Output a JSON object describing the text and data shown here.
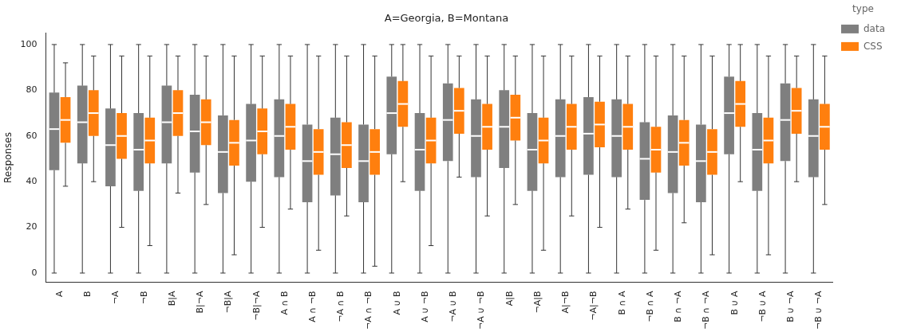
{
  "chart_data": {
    "type": "box",
    "title": "A=Georgia, B=Montana",
    "ylabel": "Responses",
    "legend_title": "type",
    "legend": "right",
    "grid": false,
    "categories": [
      "A",
      "B",
      "¬A",
      "¬B",
      "B|A",
      "B|¬A",
      "¬B|A",
      "¬B|¬A",
      "A ∩ B",
      "A ∩ ¬B",
      "¬A ∩ B",
      "¬A ∩ ¬B",
      "A ∪ B",
      "A ∪ ¬B",
      "¬A ∪ B",
      "¬A ∪ ¬B",
      "A|B",
      "¬A|B",
      "A|¬B",
      "¬A|¬B",
      "B ∩ A",
      "¬B ∩ A",
      "B ∩ ¬A",
      "¬B ∩ ¬A",
      "B ∪ A",
      "¬B ∪ A",
      "B ∪ ¬A",
      "¬B ∪ ¬A"
    ],
    "ylim": [
      -4,
      105
    ],
    "yticks": [
      0,
      20,
      40,
      60,
      80,
      100
    ],
    "series": [
      {
        "name": "data",
        "color": "#7f7f7f",
        "boxes": [
          {
            "low": 0,
            "q1": 45,
            "median": 63,
            "q3": 79,
            "high": 100
          },
          {
            "low": 0,
            "q1": 48,
            "median": 66,
            "q3": 82,
            "high": 100
          },
          {
            "low": 0,
            "q1": 38,
            "median": 56,
            "q3": 72,
            "high": 100
          },
          {
            "low": 0,
            "q1": 36,
            "median": 54,
            "q3": 70,
            "high": 100
          },
          {
            "low": 0,
            "q1": 48,
            "median": 66,
            "q3": 82,
            "high": 100
          },
          {
            "low": 0,
            "q1": 44,
            "median": 62,
            "q3": 78,
            "high": 100
          },
          {
            "low": 0,
            "q1": 35,
            "median": 53,
            "q3": 69,
            "high": 100
          },
          {
            "low": 0,
            "q1": 40,
            "median": 58,
            "q3": 74,
            "high": 100
          },
          {
            "low": 0,
            "q1": 42,
            "median": 60,
            "q3": 76,
            "high": 100
          },
          {
            "low": 0,
            "q1": 31,
            "median": 49,
            "q3": 65,
            "high": 100
          },
          {
            "low": 0,
            "q1": 34,
            "median": 52,
            "q3": 68,
            "high": 100
          },
          {
            "low": 0,
            "q1": 31,
            "median": 49,
            "q3": 65,
            "high": 100
          },
          {
            "low": 0,
            "q1": 52,
            "median": 70,
            "q3": 86,
            "high": 100
          },
          {
            "low": 0,
            "q1": 36,
            "median": 54,
            "q3": 70,
            "high": 100
          },
          {
            "low": 0,
            "q1": 49,
            "median": 67,
            "q3": 83,
            "high": 100
          },
          {
            "low": 0,
            "q1": 42,
            "median": 60,
            "q3": 76,
            "high": 100
          },
          {
            "low": 0,
            "q1": 46,
            "median": 64,
            "q3": 80,
            "high": 100
          },
          {
            "low": 0,
            "q1": 36,
            "median": 54,
            "q3": 70,
            "high": 100
          },
          {
            "low": 0,
            "q1": 42,
            "median": 60,
            "q3": 76,
            "high": 100
          },
          {
            "low": 0,
            "q1": 43,
            "median": 61,
            "q3": 77,
            "high": 100
          },
          {
            "low": 0,
            "q1": 42,
            "median": 60,
            "q3": 76,
            "high": 100
          },
          {
            "low": 0,
            "q1": 32,
            "median": 50,
            "q3": 66,
            "high": 100
          },
          {
            "low": 0,
            "q1": 35,
            "median": 53,
            "q3": 69,
            "high": 100
          },
          {
            "low": 0,
            "q1": 31,
            "median": 49,
            "q3": 65,
            "high": 100
          },
          {
            "low": 0,
            "q1": 52,
            "median": 70,
            "q3": 86,
            "high": 100
          },
          {
            "low": 0,
            "q1": 36,
            "median": 54,
            "q3": 70,
            "high": 100
          },
          {
            "low": 0,
            "q1": 49,
            "median": 67,
            "q3": 83,
            "high": 100
          },
          {
            "low": 0,
            "q1": 42,
            "median": 60,
            "q3": 76,
            "high": 100
          }
        ]
      },
      {
        "name": "CSS",
        "color": "#ff7f0e",
        "boxes": [
          {
            "low": 38,
            "q1": 57,
            "median": 67,
            "q3": 77,
            "high": 92
          },
          {
            "low": 40,
            "q1": 60,
            "median": 70,
            "q3": 80,
            "high": 95
          },
          {
            "low": 20,
            "q1": 50,
            "median": 60,
            "q3": 70,
            "high": 95
          },
          {
            "low": 12,
            "q1": 48,
            "median": 58,
            "q3": 68,
            "high": 95
          },
          {
            "low": 35,
            "q1": 60,
            "median": 70,
            "q3": 80,
            "high": 95
          },
          {
            "low": 30,
            "q1": 56,
            "median": 66,
            "q3": 76,
            "high": 95
          },
          {
            "low": 8,
            "q1": 47,
            "median": 57,
            "q3": 67,
            "high": 95
          },
          {
            "low": 20,
            "q1": 52,
            "median": 62,
            "q3": 72,
            "high": 95
          },
          {
            "low": 28,
            "q1": 54,
            "median": 64,
            "q3": 74,
            "high": 95
          },
          {
            "low": 10,
            "q1": 43,
            "median": 53,
            "q3": 63,
            "high": 95
          },
          {
            "low": 25,
            "q1": 46,
            "median": 56,
            "q3": 66,
            "high": 95
          },
          {
            "low": 3,
            "q1": 43,
            "median": 53,
            "q3": 63,
            "high": 95
          },
          {
            "low": 40,
            "q1": 64,
            "median": 74,
            "q3": 84,
            "high": 100
          },
          {
            "low": 12,
            "q1": 48,
            "median": 58,
            "q3": 68,
            "high": 95
          },
          {
            "low": 42,
            "q1": 61,
            "median": 71,
            "q3": 81,
            "high": 95
          },
          {
            "low": 25,
            "q1": 54,
            "median": 64,
            "q3": 74,
            "high": 95
          },
          {
            "low": 30,
            "q1": 58,
            "median": 68,
            "q3": 78,
            "high": 95
          },
          {
            "low": 10,
            "q1": 48,
            "median": 58,
            "q3": 68,
            "high": 95
          },
          {
            "low": 25,
            "q1": 54,
            "median": 64,
            "q3": 74,
            "high": 95
          },
          {
            "low": 20,
            "q1": 55,
            "median": 65,
            "q3": 75,
            "high": 95
          },
          {
            "low": 28,
            "q1": 54,
            "median": 64,
            "q3": 74,
            "high": 95
          },
          {
            "low": 10,
            "q1": 44,
            "median": 54,
            "q3": 64,
            "high": 95
          },
          {
            "low": 22,
            "q1": 47,
            "median": 57,
            "q3": 67,
            "high": 95
          },
          {
            "low": 8,
            "q1": 43,
            "median": 53,
            "q3": 63,
            "high": 95
          },
          {
            "low": 40,
            "q1": 64,
            "median": 74,
            "q3": 84,
            "high": 100
          },
          {
            "low": 8,
            "q1": 48,
            "median": 58,
            "q3": 68,
            "high": 95
          },
          {
            "low": 40,
            "q1": 61,
            "median": 71,
            "q3": 81,
            "high": 95
          },
          {
            "low": 30,
            "q1": 54,
            "median": 64,
            "q3": 74,
            "high": 95
          }
        ]
      }
    ]
  }
}
